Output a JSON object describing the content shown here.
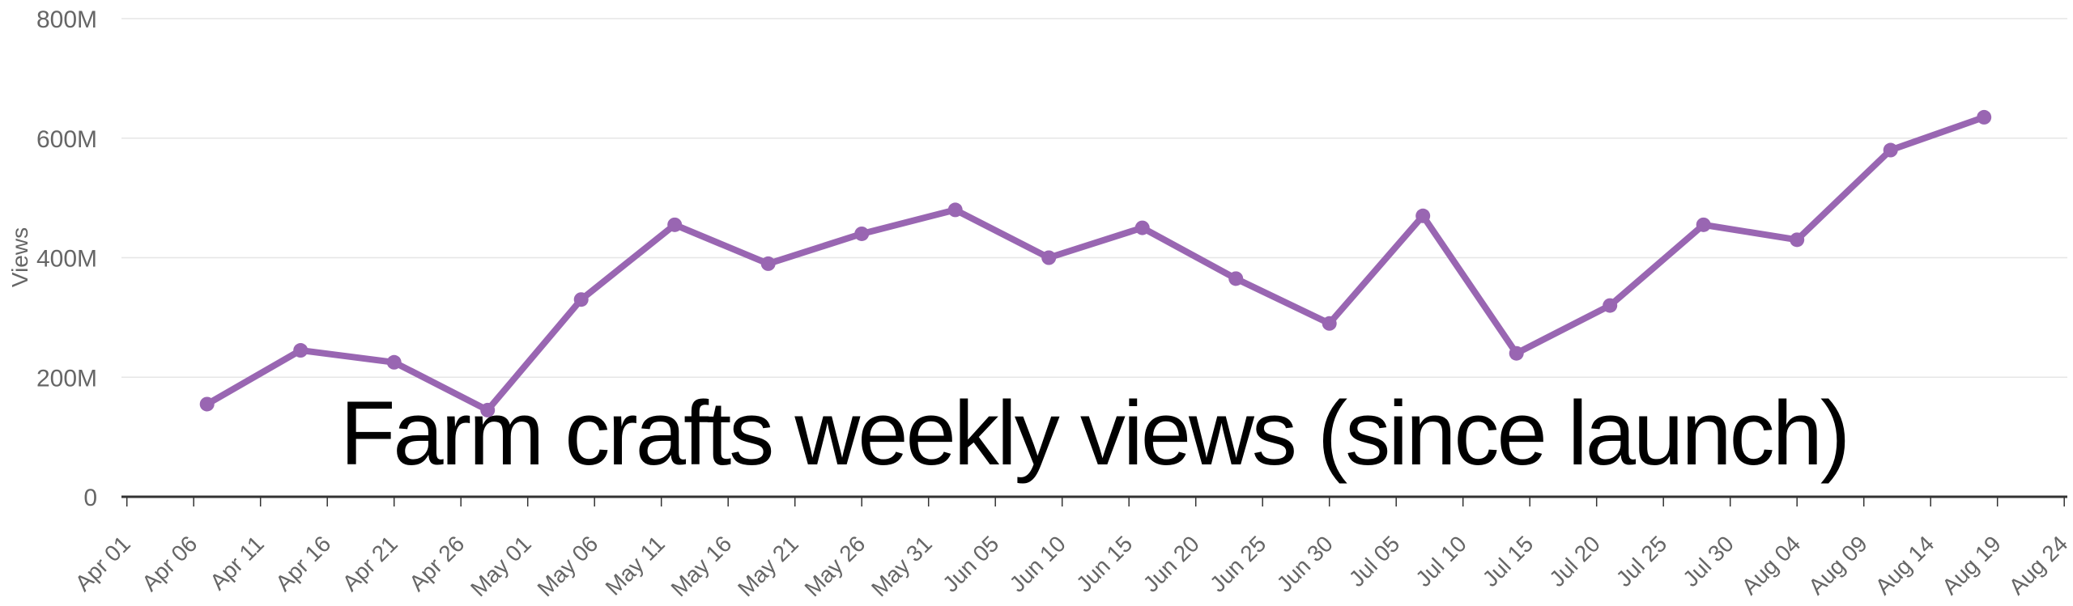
{
  "chart_data": {
    "type": "line",
    "title": "Farm crafts weekly views (since launch)",
    "ylabel": "Views",
    "xlabel": "",
    "units": "M",
    "ylim": [
      0,
      800
    ],
    "grid": true,
    "legend": false,
    "series_color": "#9966B2",
    "y_ticks": [
      {
        "label": "0",
        "value": 0
      },
      {
        "label": "200M",
        "value": 200
      },
      {
        "label": "400M",
        "value": 400
      },
      {
        "label": "600M",
        "value": 600
      },
      {
        "label": "800M",
        "value": 800
      }
    ],
    "x_ticks": [
      {
        "label": "Apr 01",
        "day": 0
      },
      {
        "label": "Apr 06",
        "day": 5
      },
      {
        "label": "Apr 11",
        "day": 10
      },
      {
        "label": "Apr 16",
        "day": 15
      },
      {
        "label": "Apr 21",
        "day": 20
      },
      {
        "label": "Apr 26",
        "day": 25
      },
      {
        "label": "May 01",
        "day": 30
      },
      {
        "label": "May 06",
        "day": 35
      },
      {
        "label": "May 11",
        "day": 40
      },
      {
        "label": "May 16",
        "day": 45
      },
      {
        "label": "May 21",
        "day": 50
      },
      {
        "label": "May 26",
        "day": 55
      },
      {
        "label": "May 31",
        "day": 60
      },
      {
        "label": "Jun 05",
        "day": 65
      },
      {
        "label": "Jun 10",
        "day": 70
      },
      {
        "label": "Jun 15",
        "day": 75
      },
      {
        "label": "Jun 20",
        "day": 80
      },
      {
        "label": "Jun 25",
        "day": 85
      },
      {
        "label": "Jun 30",
        "day": 90
      },
      {
        "label": "Jul 05",
        "day": 95
      },
      {
        "label": "Jul 10",
        "day": 100
      },
      {
        "label": "Jul 15",
        "day": 105
      },
      {
        "label": "Jul 20",
        "day": 110
      },
      {
        "label": "Jul 25",
        "day": 115
      },
      {
        "label": "Jul 30",
        "day": 120
      },
      {
        "label": "Aug 04",
        "day": 125
      },
      {
        "label": "Aug 09",
        "day": 130
      },
      {
        "label": "Aug 14",
        "day": 135
      },
      {
        "label": "Aug 19",
        "day": 140
      },
      {
        "label": "Aug 24",
        "day": 145
      }
    ],
    "series": [
      {
        "name": "Views",
        "points": [
          {
            "date": "Apr 07",
            "day": 6,
            "views_millions": 155
          },
          {
            "date": "Apr 14",
            "day": 13,
            "views_millions": 245
          },
          {
            "date": "Apr 21",
            "day": 20,
            "views_millions": 225
          },
          {
            "date": "Apr 28",
            "day": 27,
            "views_millions": 145
          },
          {
            "date": "May 05",
            "day": 34,
            "views_millions": 330
          },
          {
            "date": "May 12",
            "day": 41,
            "views_millions": 455
          },
          {
            "date": "May 19",
            "day": 48,
            "views_millions": 390
          },
          {
            "date": "May 26",
            "day": 55,
            "views_millions": 440
          },
          {
            "date": "Jun 02",
            "day": 62,
            "views_millions": 480
          },
          {
            "date": "Jun 09",
            "day": 69,
            "views_millions": 400
          },
          {
            "date": "Jun 16",
            "day": 76,
            "views_millions": 450
          },
          {
            "date": "Jun 23",
            "day": 83,
            "views_millions": 365
          },
          {
            "date": "Jun 30",
            "day": 90,
            "views_millions": 290
          },
          {
            "date": "Jul 07",
            "day": 97,
            "views_millions": 470
          },
          {
            "date": "Jul 14",
            "day": 104,
            "views_millions": 240
          },
          {
            "date": "Jul 21",
            "day": 111,
            "views_millions": 320
          },
          {
            "date": "Jul 28",
            "day": 118,
            "views_millions": 455
          },
          {
            "date": "Aug 04",
            "day": 125,
            "views_millions": 430
          },
          {
            "date": "Aug 11",
            "day": 132,
            "views_millions": 580
          },
          {
            "date": "Aug 18",
            "day": 139,
            "views_millions": 635
          }
        ]
      }
    ],
    "colors": {
      "gridline": "#E6E6E6",
      "axis_line": "#333333",
      "tick_label": "#666666",
      "title": "#000000",
      "menu_icon": "#666666"
    }
  },
  "icons": {
    "menu": "hamburger-menu-icon"
  }
}
